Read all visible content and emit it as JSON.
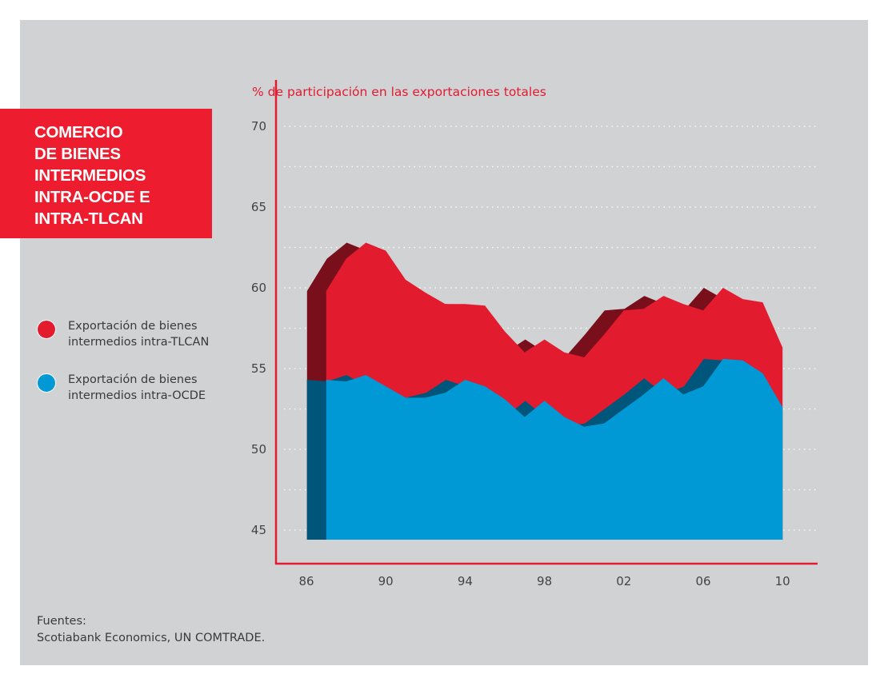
{
  "title": "COMERCIO\nDE BIENES\nINTERMEDIOS\nINTRA-OCDE E\nINTRA-TLCAN",
  "legend": [
    {
      "label": "Exportación de bienes intermedios intra-TLCAN",
      "color": "#e31b2f"
    },
    {
      "label": "Exportación de bienes intermedios intra-OCDE",
      "color": "#0099d6"
    }
  ],
  "source": {
    "heading": "Fuentes:",
    "text": "Scotiabank Economics, UN COMTRADE."
  },
  "chart_data": {
    "type": "area",
    "style": "3d-extruded stacked overlap",
    "ylabel": "% de participación en las exportaciones totales",
    "xlabel": "",
    "ylim": [
      45,
      70
    ],
    "yticks": [
      "45",
      "50",
      "55",
      "60",
      "65",
      "70"
    ],
    "xticks": [
      "86",
      "90",
      "94",
      "98",
      "02",
      "06",
      "10"
    ],
    "xlim": [
      1986,
      2010
    ],
    "grid": "horizontal dotted",
    "x": [
      1987,
      1988,
      1989,
      1990,
      1991,
      1992,
      1993,
      1994,
      1995,
      1996,
      1997,
      1998,
      1999,
      2000,
      2001,
      2002,
      2003,
      2004,
      2005,
      2006,
      2007,
      2008,
      2009,
      2010
    ],
    "series": [
      {
        "name": "Exportación de bienes intermedios intra-TLCAN",
        "color": "#e31b2f",
        "shade": "#7a0f1c",
        "values": [
          59.8,
          61.8,
          62.8,
          62.3,
          60.5,
          59.7,
          59.0,
          59.0,
          58.9,
          57.3,
          56.0,
          56.8,
          56.0,
          55.7,
          57.1,
          58.6,
          58.7,
          59.5,
          59.0,
          58.6,
          60.0,
          59.3,
          59.1,
          56.3
        ]
      },
      {
        "name": "Exportación de bienes intermedios intra-OCDE",
        "color": "#0099d6",
        "shade": "#00557a",
        "values": [
          54.3,
          54.2,
          54.6,
          53.9,
          53.2,
          53.2,
          53.5,
          54.3,
          53.9,
          53.1,
          52.0,
          53.0,
          52.0,
          51.4,
          51.6,
          52.5,
          53.4,
          54.4,
          53.4,
          53.9,
          55.6,
          55.5,
          54.7,
          52.6
        ]
      }
    ]
  }
}
